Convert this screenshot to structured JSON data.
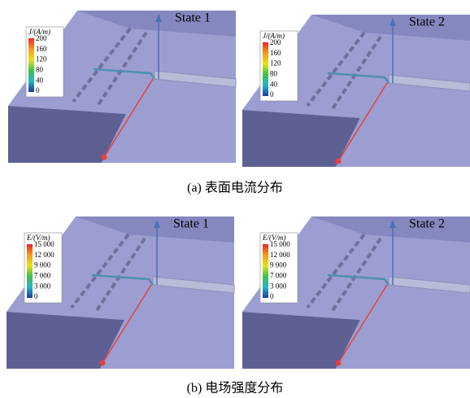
{
  "panels": [
    {
      "state": "State 1",
      "legend": {
        "title": "J/(A/m)",
        "ticks": [
          "200",
          "160",
          "120",
          "80",
          "40",
          "0"
        ]
      }
    },
    {
      "state": "State 2",
      "legend": {
        "title": "J/(A/m)",
        "ticks": [
          "200",
          "160",
          "120",
          "80",
          "40",
          "0"
        ]
      }
    },
    {
      "state": "State 1",
      "legend": {
        "title": "E/(V/m)",
        "ticks": [
          "15 000",
          "12 000",
          "9 000",
          "7 000",
          "3 000",
          "0"
        ]
      }
    },
    {
      "state": "State 2",
      "legend": {
        "title": "E/(V/m)",
        "ticks": [
          "15 000",
          "12 000",
          "9 000",
          "7 000",
          "3 000",
          "0"
        ]
      }
    }
  ],
  "captions": [
    "(a) 表面电流分布",
    "(b) 电场强度分布"
  ]
}
